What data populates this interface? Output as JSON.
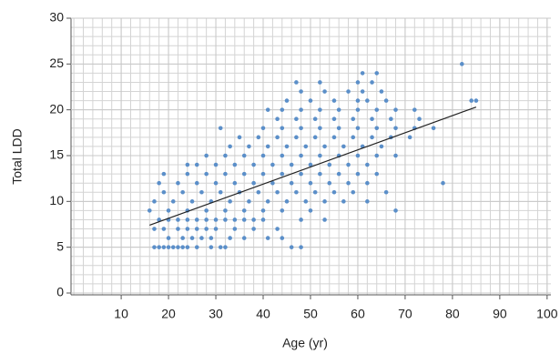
{
  "chart_data": {
    "type": "scatter",
    "x_label": "Age (yr)",
    "y_label": "Total LDD",
    "xlim": [
      -0.6,
      100.8
    ],
    "ylim": [
      -0.2,
      30
    ],
    "xticks": [
      10,
      20,
      30,
      40,
      50,
      60,
      70,
      80,
      90,
      100
    ],
    "yticks": [
      0,
      5,
      10,
      15,
      20,
      25,
      30
    ],
    "grid": true,
    "minor_grid": {
      "x": 2,
      "y": 1
    },
    "series": [
      {
        "color": "#5b8fc9",
        "x": [
          17,
          18,
          19,
          20,
          21,
          22,
          23,
          24,
          26,
          29,
          31,
          32,
          46,
          48,
          20,
          23,
          25,
          27,
          29,
          33,
          36,
          41,
          44,
          17,
          19,
          22,
          24,
          26,
          28,
          30,
          34,
          38,
          43,
          18,
          20,
          22,
          24,
          26,
          28,
          30,
          32,
          34,
          36,
          38,
          40,
          48,
          53,
          16,
          20,
          24,
          28,
          32,
          36,
          40,
          44,
          50,
          68,
          17,
          21,
          25,
          29,
          33,
          37,
          41,
          45,
          49,
          53,
          57,
          62,
          19,
          23,
          27,
          31,
          35,
          39,
          43,
          47,
          51,
          55,
          59,
          66,
          18,
          22,
          26,
          30,
          34,
          38,
          42,
          46,
          50,
          54,
          58,
          62,
          78,
          19,
          24,
          28,
          32,
          36,
          40,
          44,
          48,
          52,
          56,
          60,
          64,
          24,
          26,
          30,
          34,
          38,
          42,
          46,
          50,
          54,
          58,
          62,
          28,
          32,
          36,
          40,
          44,
          48,
          52,
          56,
          60,
          64,
          68,
          33,
          37,
          41,
          45,
          49,
          53,
          57,
          61,
          65,
          35,
          39,
          43,
          47,
          51,
          55,
          59,
          63,
          67,
          71,
          31,
          40,
          44,
          48,
          52,
          56,
          60,
          64,
          68,
          72,
          76,
          43,
          47,
          51,
          55,
          59,
          63,
          67,
          73,
          41,
          44,
          48,
          52,
          56,
          60,
          64,
          68,
          72,
          45,
          50,
          55,
          60,
          62,
          66,
          84,
          85,
          48,
          53,
          58,
          61,
          65,
          47,
          52,
          60,
          63,
          61,
          64,
          82
        ],
        "values": [
          5,
          5,
          5,
          5,
          5,
          5,
          5,
          5,
          5,
          5,
          5,
          5,
          5,
          5,
          6,
          6,
          6,
          6,
          6,
          6,
          6,
          6,
          6,
          7,
          7,
          7,
          7,
          7,
          7,
          7,
          7,
          7,
          7,
          8,
          8,
          8,
          8,
          8,
          8,
          8,
          8,
          8,
          8,
          8,
          8,
          8,
          8,
          9,
          9,
          9,
          9,
          9,
          9,
          9,
          9,
          9,
          9,
          10,
          10,
          10,
          10,
          10,
          10,
          10,
          10,
          10,
          10,
          10,
          10,
          11,
          11,
          11,
          11,
          11,
          11,
          11,
          11,
          11,
          11,
          11,
          11,
          12,
          12,
          12,
          12,
          12,
          12,
          12,
          12,
          12,
          12,
          12,
          12,
          12,
          13,
          13,
          13,
          13,
          13,
          13,
          13,
          13,
          13,
          13,
          13,
          13,
          14,
          14,
          14,
          14,
          14,
          14,
          14,
          14,
          14,
          14,
          14,
          15,
          15,
          15,
          15,
          15,
          15,
          15,
          15,
          15,
          15,
          15,
          16,
          16,
          16,
          16,
          16,
          16,
          16,
          16,
          16,
          17,
          17,
          17,
          17,
          17,
          17,
          17,
          17,
          17,
          17,
          18,
          18,
          18,
          18,
          18,
          18,
          18,
          18,
          18,
          18,
          18,
          19,
          19,
          19,
          19,
          19,
          19,
          19,
          19,
          20,
          20,
          20,
          20,
          20,
          20,
          20,
          20,
          20,
          21,
          21,
          21,
          21,
          21,
          21,
          21,
          21,
          22,
          22,
          22,
          22,
          22,
          23,
          23,
          23,
          23,
          24,
          24,
          25
        ]
      }
    ],
    "trendline": {
      "color": "#222222",
      "x": [
        16,
        85
      ],
      "values": [
        7.4,
        20.3
      ]
    }
  }
}
